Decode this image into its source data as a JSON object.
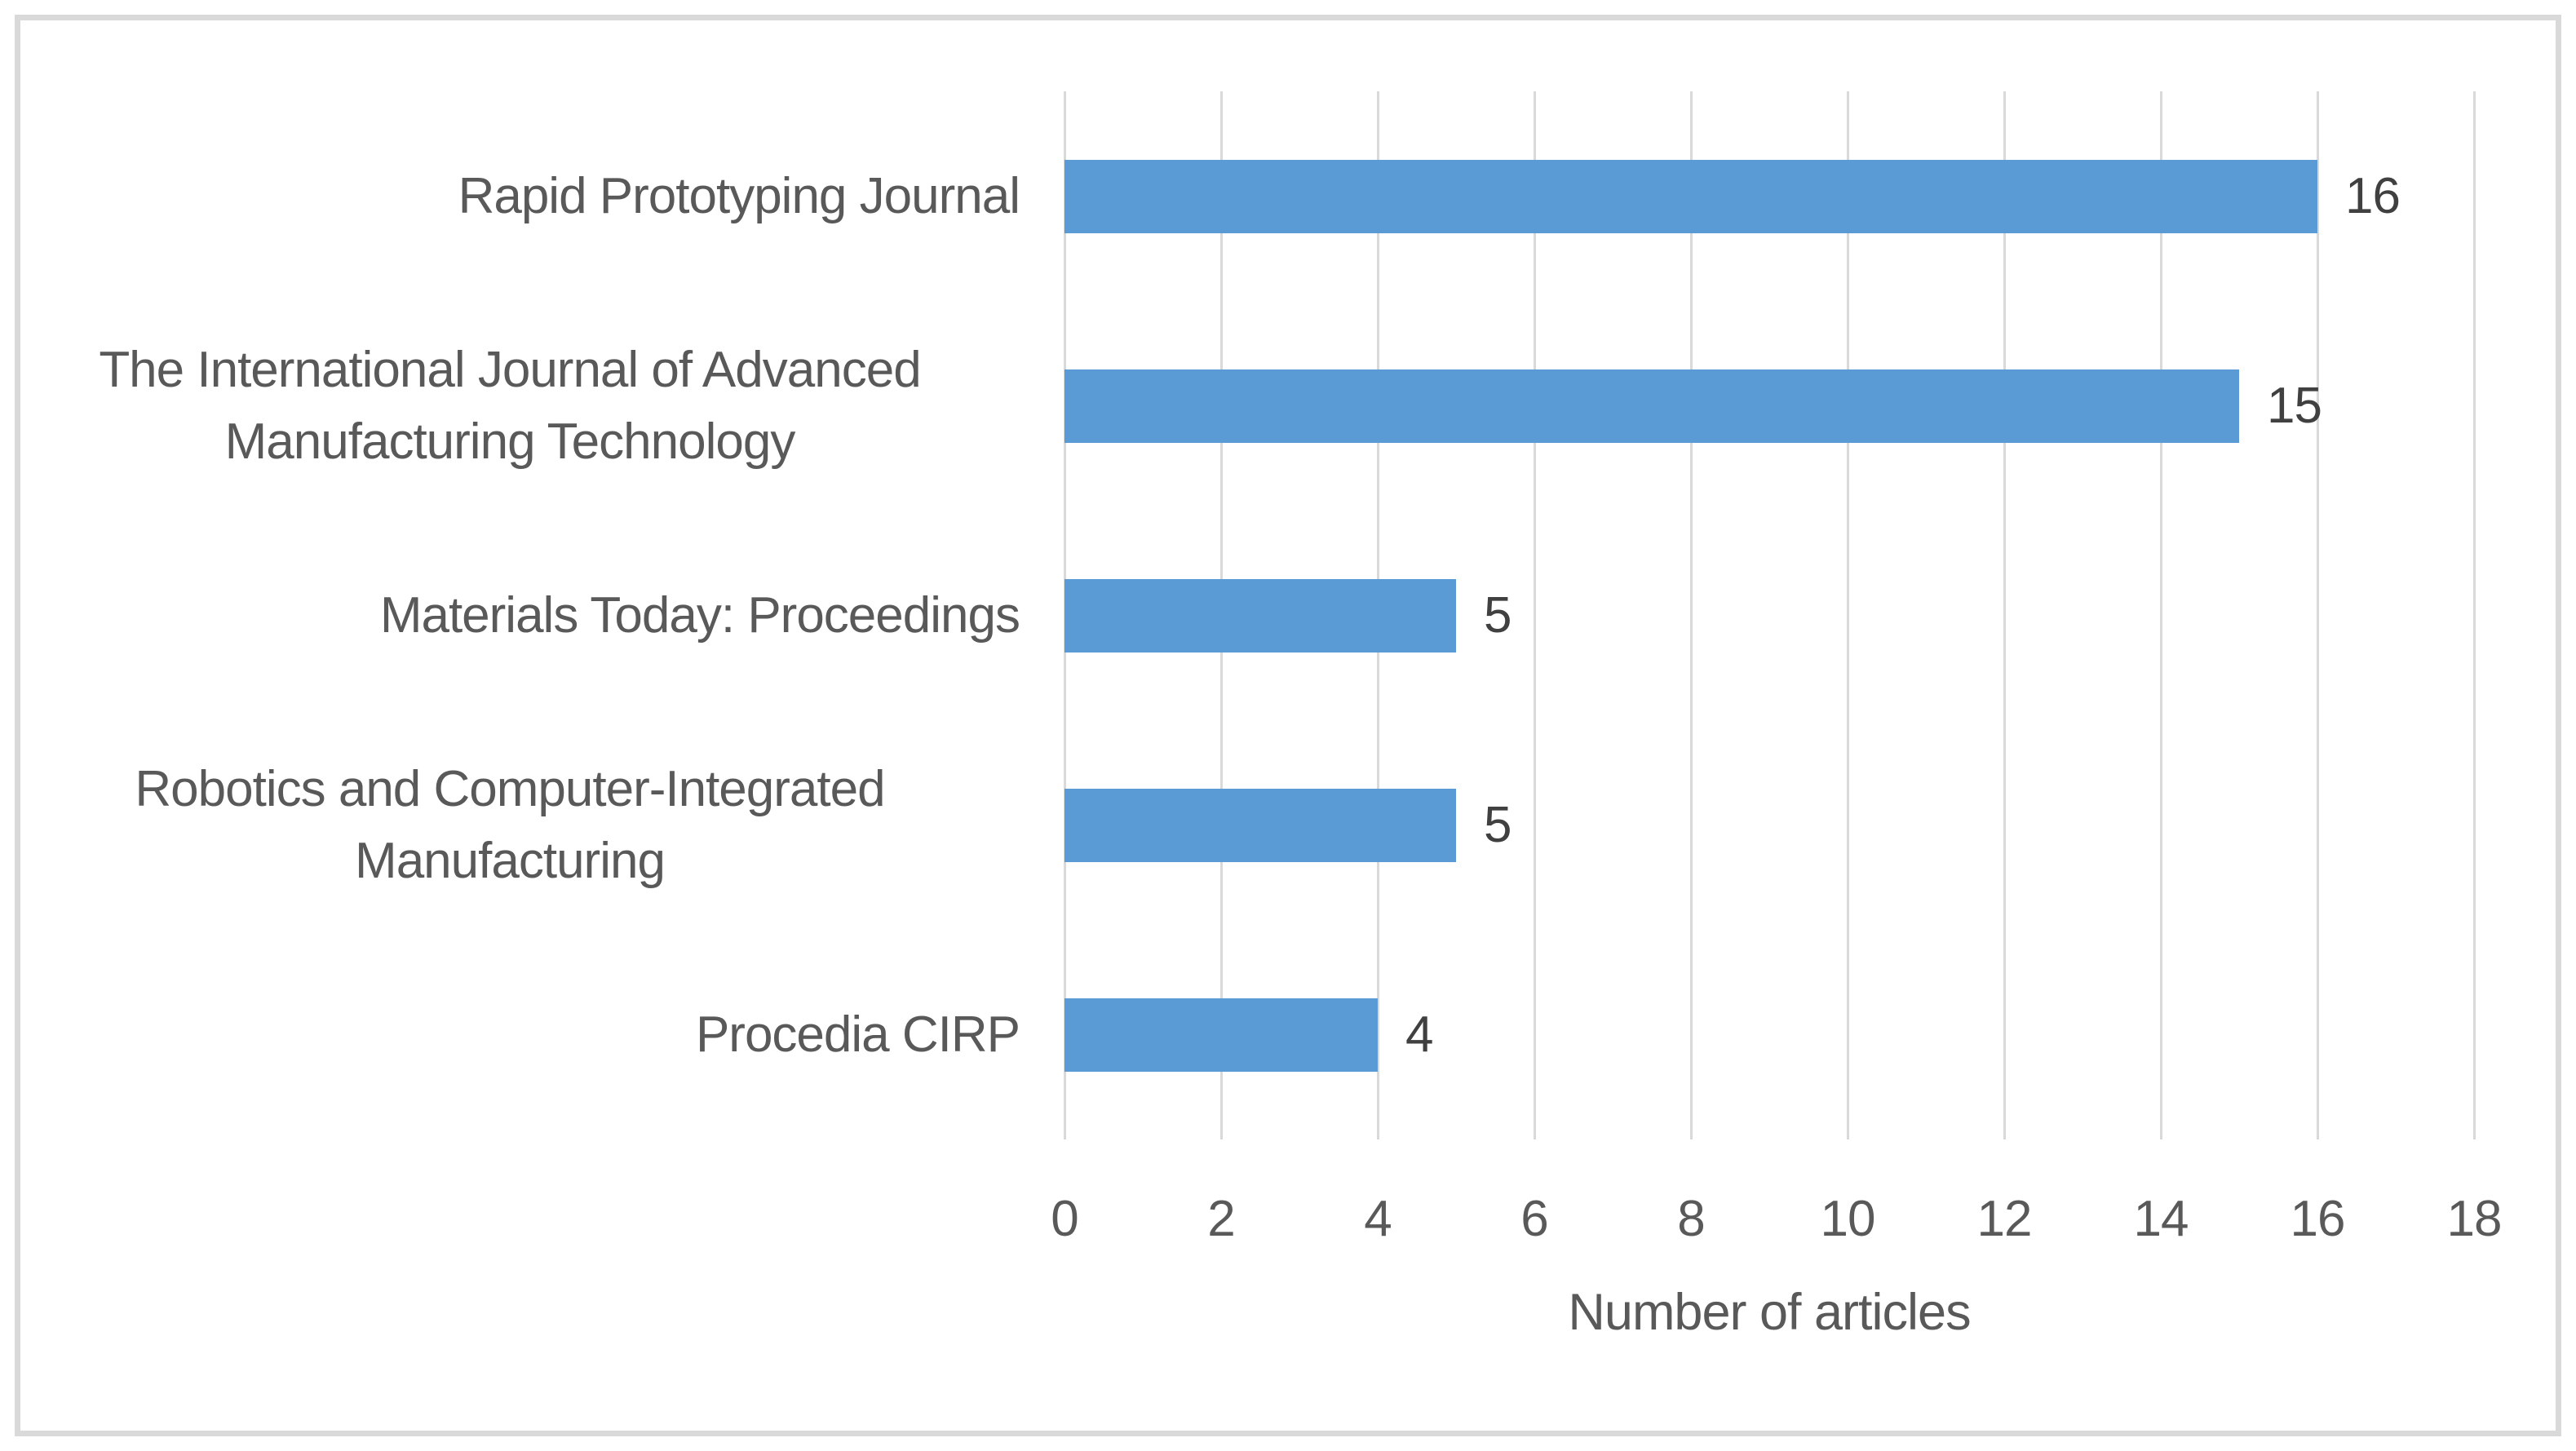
{
  "chart_data": {
    "type": "bar",
    "orientation": "horizontal",
    "title": "",
    "xlabel": "Number of articles",
    "ylabel": "",
    "categories": [
      "Rapid Prototyping Journal",
      "The International Journal of Advanced Manufacturing Technology",
      "Materials Today: Proceedings",
      "Robotics and Computer-Integrated Manufacturing",
      "Procedia CIRP"
    ],
    "values": [
      16,
      15,
      5,
      5,
      4
    ],
    "data_labels": [
      "16",
      "15",
      "5",
      "5",
      "4"
    ],
    "xlim": [
      0,
      18
    ],
    "xticks": [
      "0",
      "2",
      "4",
      "6",
      "8",
      "10",
      "12",
      "14",
      "16",
      "18"
    ],
    "grid": "vertical-gridlines",
    "legend": "none",
    "colors": {
      "bar": "#5b9bd5",
      "gridline": "#d9d9d9",
      "figure_border": "#d9d9d9",
      "axis_text": "#595959",
      "data_label_text": "#404040",
      "background": "#ffffff"
    }
  }
}
